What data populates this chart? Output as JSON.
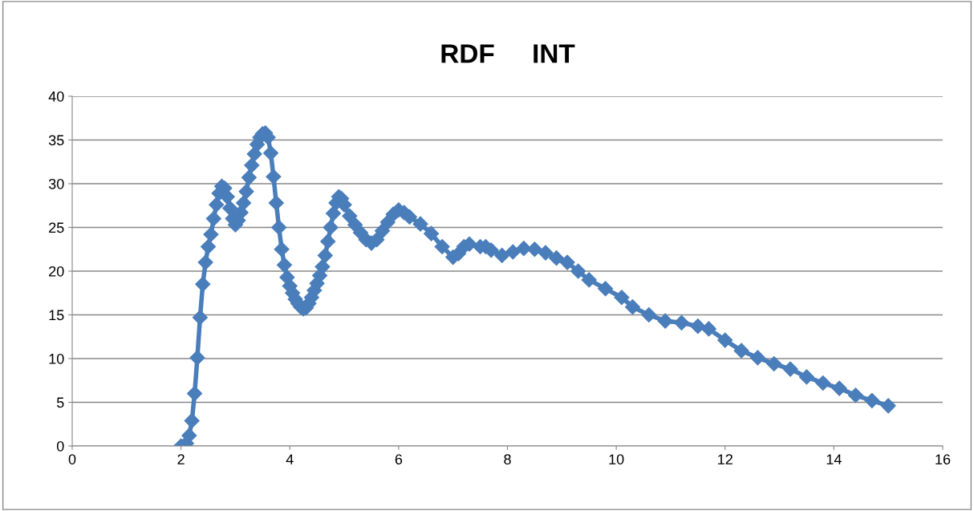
{
  "chart_data": {
    "type": "line",
    "title": "RDF     INT",
    "x": [
      2.0,
      2.05,
      2.1,
      2.15,
      2.2,
      2.25,
      2.3,
      2.35,
      2.4,
      2.45,
      2.5,
      2.55,
      2.6,
      2.65,
      2.7,
      2.75,
      2.8,
      2.85,
      2.9,
      2.95,
      3.0,
      3.05,
      3.1,
      3.15,
      3.2,
      3.25,
      3.3,
      3.35,
      3.4,
      3.45,
      3.5,
      3.55,
      3.6,
      3.65,
      3.7,
      3.75,
      3.8,
      3.85,
      3.9,
      3.95,
      4.0,
      4.05,
      4.1,
      4.15,
      4.2,
      4.25,
      4.3,
      4.35,
      4.4,
      4.45,
      4.5,
      4.55,
      4.6,
      4.65,
      4.7,
      4.75,
      4.8,
      4.85,
      4.9,
      4.95,
      5.0,
      5.1,
      5.2,
      5.3,
      5.4,
      5.5,
      5.6,
      5.7,
      5.8,
      5.9,
      6.0,
      6.1,
      6.2,
      6.4,
      6.6,
      6.8,
      7.0,
      7.1,
      7.2,
      7.3,
      7.5,
      7.6,
      7.7,
      7.9,
      8.1,
      8.3,
      8.5,
      8.7,
      8.9,
      9.1,
      9.3,
      9.5,
      9.8,
      10.1,
      10.3,
      10.6,
      10.9,
      11.2,
      11.5,
      11.7,
      12.0,
      12.3,
      12.6,
      12.9,
      13.2,
      13.5,
      13.8,
      14.1,
      14.4,
      14.7,
      15.0
    ],
    "series": [
      {
        "color": "#4a7ebb",
        "values": [
          0,
          0,
          0.3,
          1.2,
          2.9,
          6,
          10.1,
          14.7,
          18.5,
          21,
          22.8,
          24.2,
          26,
          27.6,
          28.9,
          29.7,
          29.5,
          28.5,
          27.2,
          26,
          25.3,
          25.8,
          26.7,
          27.8,
          29.1,
          30.7,
          32.1,
          33.4,
          34.5,
          35.3,
          35.7,
          35.8,
          35.3,
          33.5,
          30.8,
          27.8,
          25,
          22.5,
          20.7,
          19.3,
          18.3,
          17.5,
          16.8,
          16.3,
          15.9,
          15.7,
          15.8,
          16.3,
          17,
          17.8,
          18.6,
          19.5,
          20.5,
          21.8,
          23.4,
          25,
          26.6,
          27.8,
          28.5,
          28.3,
          27.6,
          26.3,
          25.3,
          24.4,
          23.6,
          23.2,
          23.6,
          24.6,
          25.6,
          26.5,
          27,
          26.7,
          26.2,
          25.4,
          24.3,
          22.8,
          21.6,
          22,
          22.8,
          23.1,
          22.8,
          22.8,
          22.4,
          21.8,
          22.2,
          22.6,
          22.5,
          22.1,
          21.5,
          21,
          20,
          19,
          18,
          17,
          15.9,
          15,
          14.3,
          14.1,
          13.7,
          13.4,
          12.1,
          10.9,
          10.1,
          9.4,
          8.8,
          7.9,
          7.2,
          6.6,
          5.8,
          5.2,
          4.6
        ]
      }
    ],
    "xlim": [
      0,
      16
    ],
    "xticks": [
      0,
      2,
      4,
      6,
      8,
      10,
      12,
      14,
      16
    ],
    "ylim": [
      0,
      40
    ],
    "yticks": [
      0,
      5,
      10,
      15,
      20,
      25,
      30,
      35,
      40
    ],
    "grid": "y",
    "marker": "diamond",
    "line_style": "solid"
  }
}
